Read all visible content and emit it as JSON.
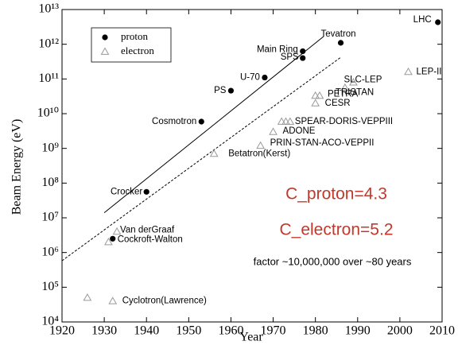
{
  "chart_data": {
    "type": "scatter",
    "xlabel": "Year",
    "ylabel": "Beam Energy (eV)",
    "xlim": [
      1920,
      2010
    ],
    "xticks": [
      1920,
      1930,
      1940,
      1950,
      1960,
      1970,
      1980,
      1990,
      2000,
      2010
    ],
    "ylim": [
      10000,
      10000000000000
    ],
    "log_y": true,
    "yticks": [
      {
        "value": 10000,
        "label": "10⁴"
      },
      {
        "value": 100000,
        "label": "10⁵"
      },
      {
        "value": 1000000,
        "label": "10⁶"
      },
      {
        "value": 10000000,
        "label": "10⁷"
      },
      {
        "value": 100000000,
        "label": "10⁸"
      },
      {
        "value": 1000000000,
        "label": "10⁹"
      },
      {
        "value": 10000000000,
        "label": "10¹⁰"
      },
      {
        "value": 100000000000,
        "label": "10¹¹"
      },
      {
        "value": 1000000000000,
        "label": "10¹²"
      },
      {
        "value": 10000000000000,
        "label": "10¹³"
      }
    ],
    "legend": "upper left",
    "series": [
      {
        "name": "proton",
        "color": "#000000",
        "marker": "circle",
        "x": [
          1932,
          1940,
          1953,
          1960,
          1968,
          1977,
          1977,
          1986,
          2009
        ],
        "values": [
          2500000,
          56000000,
          5900000000,
          46000000000,
          110000000000,
          630000000000,
          400000000000,
          1100000000000,
          4300000000000
        ],
        "labels": [
          "Cockroft-Walton",
          "Crocker",
          "Cosmotron",
          "PS",
          "U-70",
          "Main Ring",
          "SPS",
          "Tevatron",
          "LHC"
        ]
      },
      {
        "name": "electron",
        "color": "#9a9a9a",
        "marker": "triangle",
        "x": [
          1926,
          1932,
          1931,
          1933,
          1956,
          1967,
          1970,
          1972,
          1973,
          1974,
          1980,
          1980,
          1981,
          1987,
          1989,
          2002
        ],
        "values": [
          50000,
          40000,
          2000000,
          4000000,
          700000000,
          1200000000,
          3000000000,
          5900000000,
          5900000000,
          5900000000,
          20000000000,
          33000000000,
          33000000000,
          56000000000,
          80000000000,
          160000000000
        ],
        "labels": [
          null,
          "Cyclotron(Lawrence)",
          null,
          "Van derGraaf",
          "Betatron(Kerst)",
          "PRIN-STAN-ACO-VEPPII",
          "ADONE",
          null,
          null,
          "SPEAR-DORIS-VEPPIII",
          "CESR",
          null,
          "PETRA",
          "TRISTAN",
          "SLC-LEP",
          "LEP-II"
        ]
      }
    ],
    "lines": [
      {
        "x": [
          1930,
          1982
        ],
        "values": [
          14000000,
          1700000000000
        ],
        "style": "solid",
        "color": "#000000"
      },
      {
        "x": [
          1920,
          1986
        ],
        "values": [
          580000,
          420000000000
        ],
        "style": "dashed",
        "color": "#000000"
      }
    ],
    "annotations": [
      {
        "text": "C_proton=4.3",
        "color": "#c0392b"
      },
      {
        "text": "C_electron=5.2",
        "color": "#c0392b"
      },
      {
        "text": "factor ~10,000,000 over ~80 years",
        "color": "#000000"
      }
    ]
  }
}
